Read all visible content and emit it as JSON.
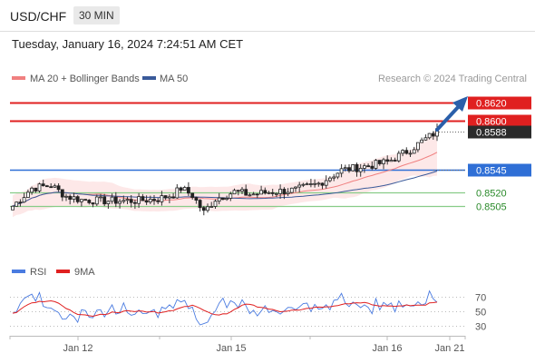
{
  "header": {
    "pair": "USD/CHF",
    "timeframe": "30 MIN",
    "datetime": "Tuesday, January 16, 2024 7:24:51 AM CET"
  },
  "legend": {
    "ma20": "MA 20 + Bollinger Bands",
    "ma50": "MA 50",
    "credit": "Research © 2024 Trading Central"
  },
  "rsi_legend": {
    "rsi": "RSI",
    "ma9": "9MA"
  },
  "colors": {
    "red_line": "#e02020",
    "blue_line": "#2f6fd6",
    "green_line": "#88cc88",
    "ma20": "#f08080",
    "ma50": "#3a5a9a",
    "band": "#fde4e4",
    "arrow": "#2a5faa",
    "rsi": "#4a7be0",
    "rsi_ma": "#e02020"
  },
  "chart_data": {
    "type": "candlestick",
    "x_ticks": [
      "Jan 12",
      "Jan 15",
      "Jan 16",
      "Jan 21"
    ],
    "price_levels": [
      {
        "value": "0.8620",
        "style": "red-box"
      },
      {
        "value": "0.8600",
        "style": "red-box"
      },
      {
        "value": "0.8588",
        "style": "dark-box"
      },
      {
        "value": "0.8545",
        "style": "blue-box"
      },
      {
        "value": "0.8520",
        "style": "green-text"
      },
      {
        "value": "0.8505",
        "style": "green-text"
      }
    ],
    "price_range": [
      0.8475,
      0.8628
    ],
    "rsi_ticks": [
      "70",
      "50",
      "30"
    ],
    "rsi_range": [
      20,
      90
    ]
  }
}
